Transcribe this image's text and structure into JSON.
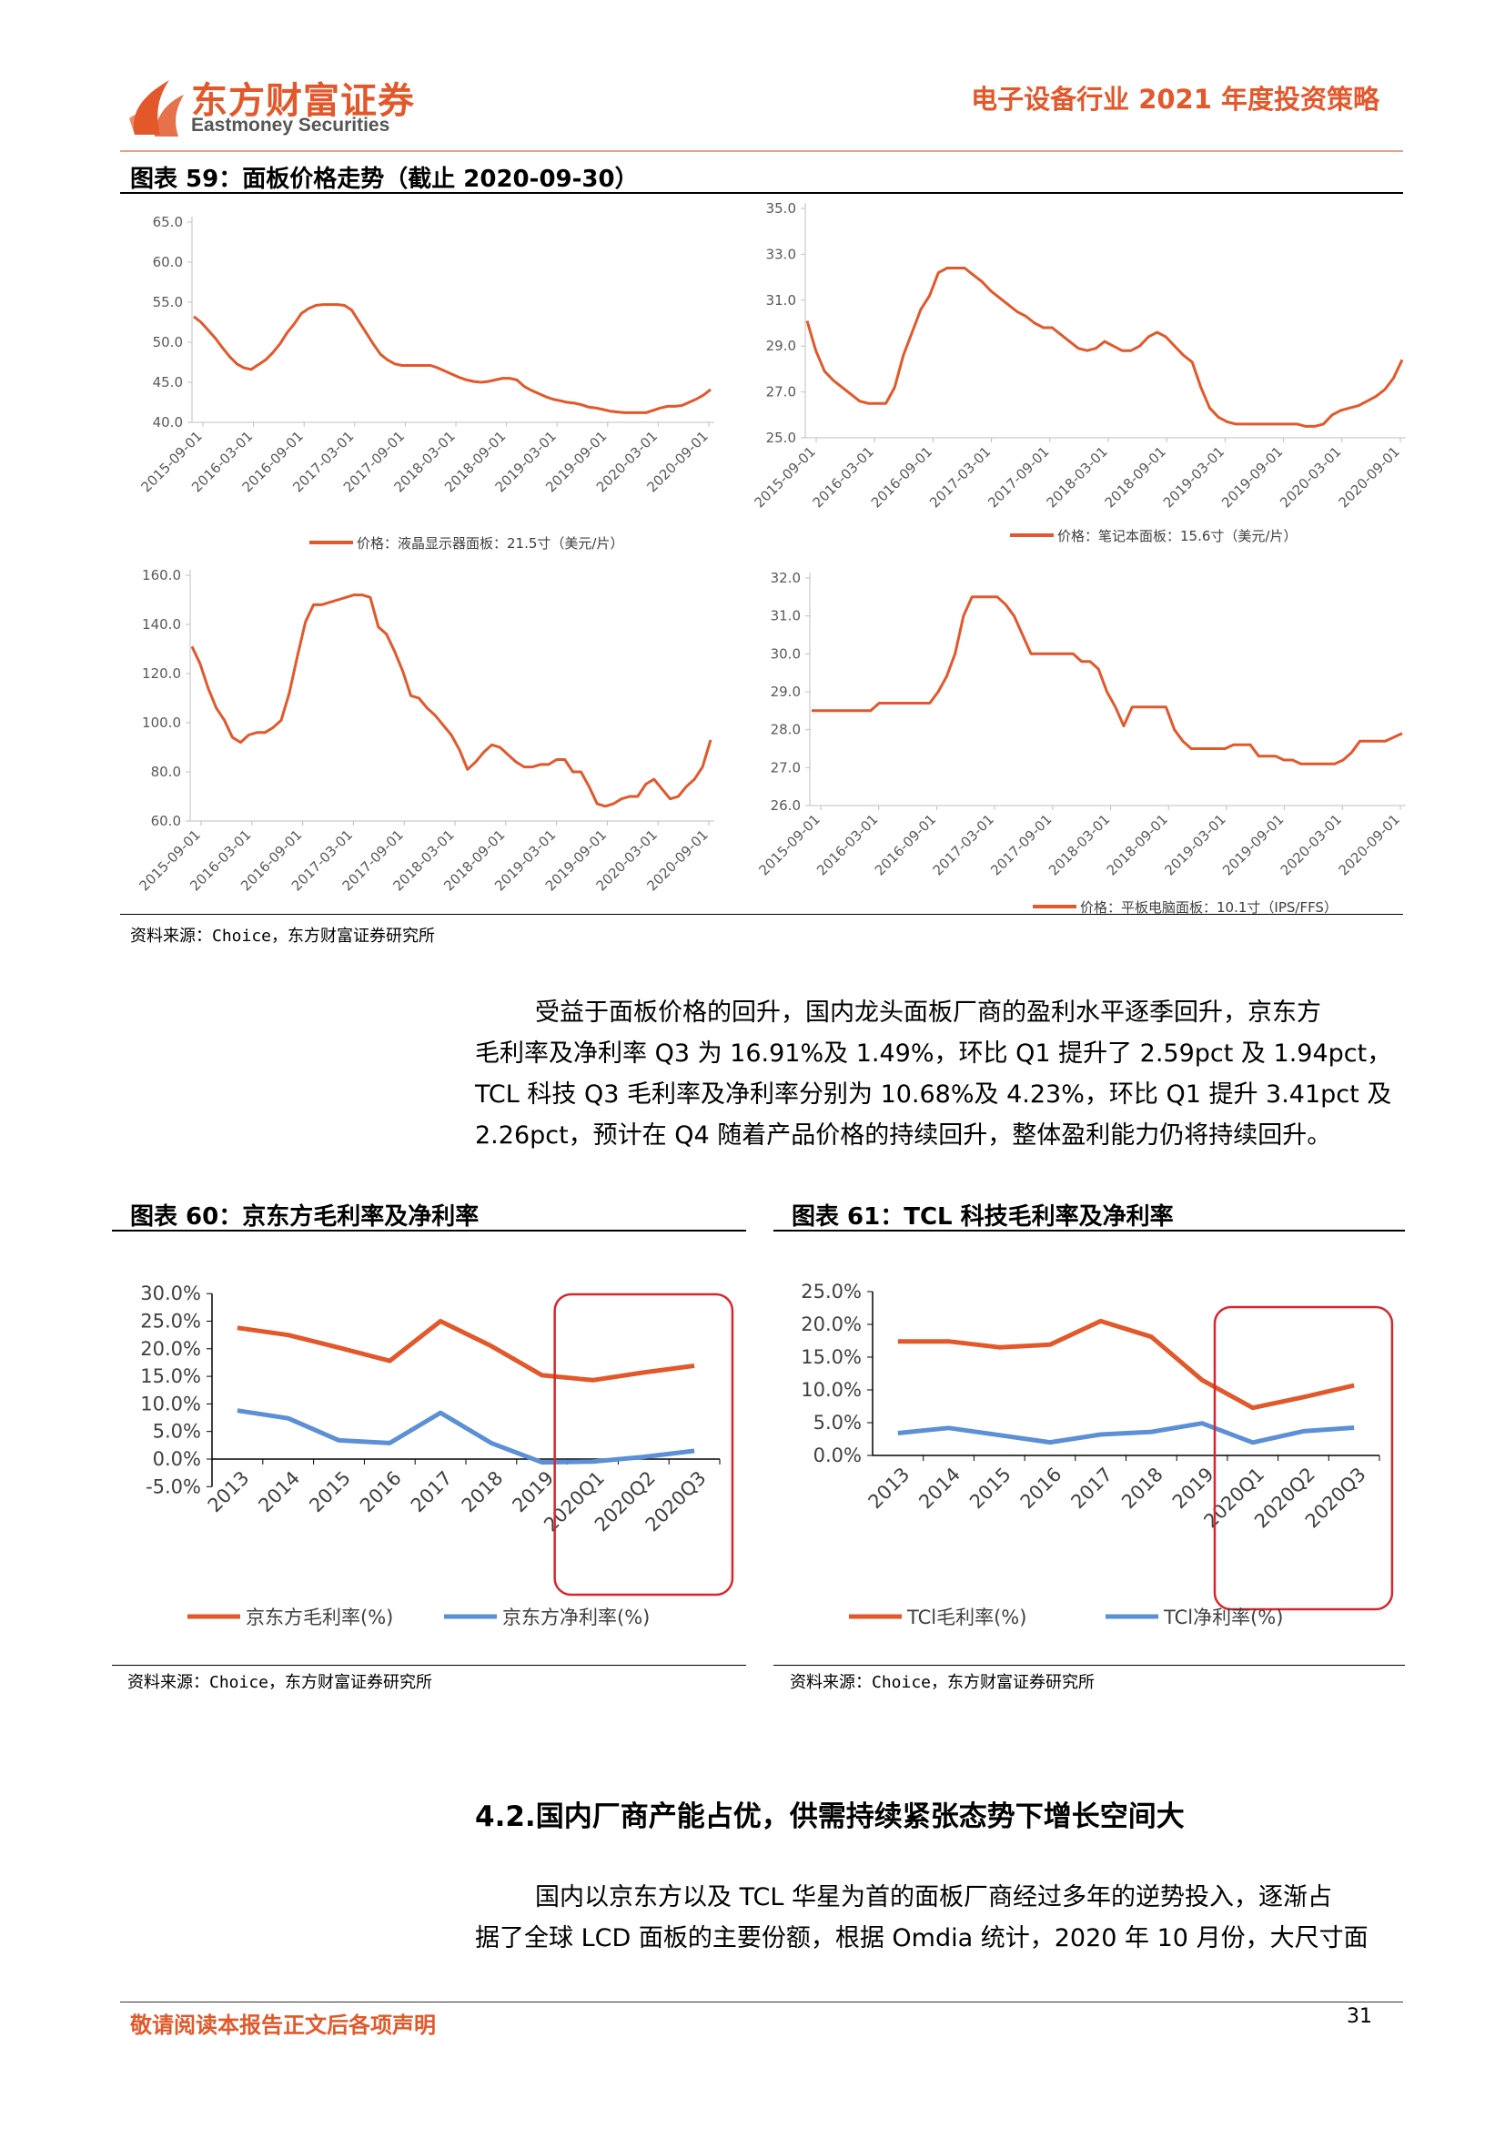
{
  "header": {
    "brand_cn": "东方财富证券",
    "brand_en": "Eastmoney Securities",
    "report_title": "电子设备行业 2021 年度投资策略",
    "accent_color": "#e2582a"
  },
  "fig59": {
    "title": "图表 59：面板价格走势（截止 2020-09-30）",
    "source": "资料来源：Choice，东方财富证券研究所"
  },
  "fig60": {
    "title": "图表 60：京东方毛利率及净利率",
    "source": "资料来源：Choice，东方财富证券研究所"
  },
  "fig61": {
    "title": "图表 61：TCL 科技毛利率及净利率",
    "source": "资料来源：Choice，东方财富证券研究所"
  },
  "body": {
    "para1": [
      "受益于面板价格的回升，国内龙头面板厂商的盈利水平逐季回升，京东方",
      "毛利率及净利率 Q3 为 16.91%及 1.49%，环比 Q1 提升了 2.59pct 及 1.94pct，",
      "TCL 科技 Q3 毛利率及净利率分别为 10.68%及 4.23%，环比 Q1 提升 3.41pct 及",
      "2.26pct，预计在 Q4 随着产品价格的持续回升，整体盈利能力仍将持续回升。"
    ],
    "section_heading": "4.2.国内厂商产能占优，供需持续紧张态势下增长空间大",
    "para2": [
      "国内以京东方以及 TCL 华星为首的面板厂商经过多年的逆势投入，逐渐占",
      "据了全球 LCD 面板的主要份额，根据 Omdia 统计，2020 年 10 月份，大尺寸面"
    ]
  },
  "footer": {
    "disclaimer": "敬请阅读本报告正文后各项声明",
    "page_number": "31"
  },
  "chart_data": [
    {
      "type": "line",
      "id": "monitor",
      "x_ticks": [
        "2015-09-01",
        "2016-03-01",
        "2016-09-01",
        "2017-03-01",
        "2017-09-01",
        "2018-03-01",
        "2018-09-01",
        "2019-03-01",
        "2019-09-01",
        "2020-03-01",
        "2020-09-01"
      ],
      "y_ticks": [
        "40.0",
        "45.0",
        "50.0",
        "55.0",
        "60.0",
        "65.0"
      ],
      "ylim": [
        40,
        65
      ],
      "color": "#e2582a",
      "series": [
        {
          "name": "价格：液晶显示器面板：21.5寸（美元/片）",
          "values": [
            53.2,
            52.5,
            51.5,
            50.5,
            49.3,
            48.2,
            47.3,
            46.8,
            46.6,
            47.2,
            47.8,
            48.7,
            49.8,
            51.2,
            52.3,
            53.6,
            54.2,
            54.6,
            54.7,
            54.7,
            54.7,
            54.6,
            54.0,
            52.6,
            51.2,
            49.8,
            48.5,
            47.8,
            47.3,
            47.1,
            47.1,
            47.1,
            47.1,
            47.1,
            46.8,
            46.4,
            46.0,
            45.6,
            45.3,
            45.1,
            45.0,
            45.1,
            45.3,
            45.5,
            45.5,
            45.3,
            44.5,
            44.0,
            43.6,
            43.2,
            42.9,
            42.7,
            42.5,
            42.4,
            42.2,
            41.9,
            41.8,
            41.6,
            41.4,
            41.3,
            41.2,
            41.2,
            41.2,
            41.2,
            41.5,
            41.8,
            42.0,
            42.0,
            42.1,
            42.5,
            42.9,
            43.4,
            44.1
          ]
        }
      ]
    },
    {
      "type": "line",
      "id": "notebook",
      "x_ticks": [
        "2015-09-01",
        "2016-03-01",
        "2016-09-01",
        "2017-03-01",
        "2017-09-01",
        "2018-03-01",
        "2018-09-01",
        "2019-03-01",
        "2019-09-01",
        "2020-03-01",
        "2020-09-01"
      ],
      "y_ticks": [
        "25.0",
        "27.0",
        "29.0",
        "31.0",
        "33.0",
        "35.0"
      ],
      "ylim": [
        25,
        35
      ],
      "color": "#e2582a",
      "series": [
        {
          "name": "价格：笔记本面板：15.6寸（美元/片）",
          "values": [
            30.1,
            28.8,
            27.9,
            27.5,
            27.2,
            26.9,
            26.6,
            26.5,
            26.5,
            26.5,
            27.2,
            28.6,
            29.6,
            30.6,
            31.2,
            32.2,
            32.4,
            32.4,
            32.4,
            32.1,
            31.8,
            31.4,
            31.1,
            30.8,
            30.5,
            30.3,
            30.0,
            29.8,
            29.8,
            29.5,
            29.2,
            28.9,
            28.8,
            28.9,
            29.2,
            29.0,
            28.8,
            28.8,
            29.0,
            29.4,
            29.6,
            29.4,
            29.0,
            28.6,
            28.3,
            27.2,
            26.3,
            25.9,
            25.7,
            25.6,
            25.6,
            25.6,
            25.6,
            25.6,
            25.6,
            25.6,
            25.6,
            25.5,
            25.5,
            25.6,
            26.0,
            26.2,
            26.3,
            26.4,
            26.6,
            26.8,
            27.1,
            27.6,
            28.4
          ]
        }
      ]
    },
    {
      "type": "line",
      "id": "tv",
      "x_ticks": [
        "2015-09-01",
        "2016-03-01",
        "2016-09-01",
        "2017-03-01",
        "2017-09-01",
        "2018-03-01",
        "2018-09-01",
        "2019-03-01",
        "2019-09-01",
        "2020-03-01",
        "2020-09-01"
      ],
      "y_ticks": [
        "60.0",
        "80.0",
        "100.0",
        "120.0",
        "140.0",
        "160.0"
      ],
      "ylim": [
        60,
        160
      ],
      "color": "#e2582a",
      "series": [
        {
          "name": "价格：液晶电视面板：43寸（美元/片）",
          "values": [
            131,
            124,
            114,
            106,
            101,
            94,
            92,
            95,
            96,
            96,
            98,
            101,
            112,
            127,
            141,
            148,
            148,
            149,
            150,
            151,
            152,
            152,
            151,
            139,
            136,
            129,
            121,
            111,
            110,
            106,
            103,
            99,
            95,
            89,
            81,
            84,
            88,
            91,
            90,
            87,
            84,
            82,
            82,
            83,
            83,
            85,
            85,
            80,
            80,
            74,
            67,
            66,
            67,
            69,
            70,
            70,
            75,
            77,
            73,
            69,
            70,
            74,
            77,
            82,
            93
          ]
        }
      ]
    },
    {
      "type": "line",
      "id": "tablet",
      "x_ticks": [
        "2015-09-01",
        "2016-03-01",
        "2016-09-01",
        "2017-03-01",
        "2017-09-01",
        "2018-03-01",
        "2018-09-01",
        "2019-03-01",
        "2019-09-01",
        "2020-03-01",
        "2020-09-01"
      ],
      "y_ticks": [
        "26.0",
        "27.0",
        "28.0",
        "29.0",
        "30.0",
        "31.0",
        "32.0"
      ],
      "ylim": [
        26,
        32
      ],
      "color": "#e2582a",
      "series": [
        {
          "name": "价格：平板电脑面板：10.1寸（IPS/FFS）",
          "values": [
            28.5,
            28.5,
            28.5,
            28.5,
            28.5,
            28.5,
            28.5,
            28.5,
            28.7,
            28.7,
            28.7,
            28.7,
            28.7,
            28.7,
            28.7,
            29.0,
            29.4,
            30.0,
            31.0,
            31.5,
            31.5,
            31.5,
            31.5,
            31.3,
            31.0,
            30.5,
            30.0,
            30.0,
            30.0,
            30.0,
            30.0,
            30.0,
            29.8,
            29.8,
            29.6,
            29.0,
            28.6,
            28.1,
            28.6,
            28.6,
            28.6,
            28.6,
            28.6,
            28.0,
            27.7,
            27.5,
            27.5,
            27.5,
            27.5,
            27.5,
            27.6,
            27.6,
            27.6,
            27.3,
            27.3,
            27.3,
            27.2,
            27.2,
            27.1,
            27.1,
            27.1,
            27.1,
            27.1,
            27.2,
            27.4,
            27.7,
            27.7,
            27.7,
            27.7,
            27.8,
            27.9
          ]
        }
      ]
    },
    {
      "type": "line",
      "id": "boe",
      "categories": [
        "2013",
        "2014",
        "2015",
        "2016",
        "2017",
        "2018",
        "2019",
        "2020Q1",
        "2020Q2",
        "2020Q3"
      ],
      "y_ticks": [
        "-5.0%",
        "0.0%",
        "5.0%",
        "10.0%",
        "15.0%",
        "20.0%",
        "25.0%",
        "30.0%"
      ],
      "ylim": [
        -5,
        30
      ],
      "series": [
        {
          "name": "京东方毛利率(%)",
          "color": "#e2582a",
          "values": [
            23.8,
            22.5,
            20.2,
            17.8,
            25.0,
            20.5,
            15.2,
            14.3,
            15.7,
            16.91
          ]
        },
        {
          "name": "京东方净利率(%)",
          "color": "#5b8fd6",
          "values": [
            8.8,
            7.4,
            3.4,
            2.9,
            8.4,
            2.9,
            -0.6,
            -0.45,
            0.4,
            1.49
          ]
        }
      ],
      "highlight_box": {
        "from": "2020Q1",
        "to": "2020Q3",
        "color": "#d9262c"
      }
    },
    {
      "type": "line",
      "id": "tcl",
      "categories": [
        "2013",
        "2014",
        "2015",
        "2016",
        "2017",
        "2018",
        "2019",
        "2020Q1",
        "2020Q2",
        "2020Q3"
      ],
      "y_ticks": [
        "0.0%",
        "5.0%",
        "10.0%",
        "15.0%",
        "20.0%",
        "25.0%"
      ],
      "ylim": [
        0,
        25
      ],
      "series": [
        {
          "name": "TCl毛利率(%)",
          "color": "#e2582a",
          "values": [
            17.4,
            17.4,
            16.5,
            16.9,
            20.5,
            18.1,
            11.5,
            7.27,
            8.9,
            10.68
          ]
        },
        {
          "name": "TCl净利率(%)",
          "color": "#5b8fd6",
          "values": [
            3.4,
            4.2,
            3.1,
            2.0,
            3.2,
            3.6,
            4.9,
            1.97,
            3.7,
            4.23
          ]
        }
      ],
      "highlight_box": {
        "from": "2020Q1",
        "to": "2020Q3",
        "color": "#d9262c"
      }
    }
  ]
}
